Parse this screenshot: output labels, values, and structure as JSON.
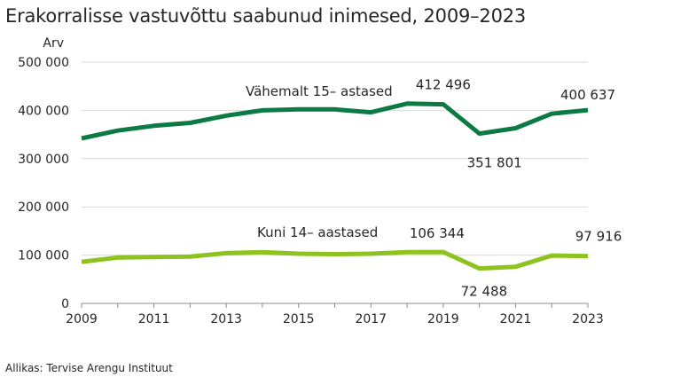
{
  "title": "Erakorralisse vastuvõttu saabunud inimesed, 2009–2023",
  "source": "Allikas: Tervise Arengu Instituut",
  "chart_data": {
    "type": "line",
    "title": "Erakorralisse vastuvõttu saabunud inimesed, 2009–2023",
    "ylabel": "Arv",
    "xlabel": "",
    "ylim": [
      0,
      500000
    ],
    "xlim": [
      2009,
      2023
    ],
    "yticks": [
      0,
      100000,
      200000,
      300000,
      400000,
      500000
    ],
    "ytick_labels": [
      "0",
      "100 000",
      "200 000",
      "300 000",
      "400 000",
      "500 000"
    ],
    "xticks": [
      2009,
      2011,
      2013,
      2015,
      2017,
      2019,
      2021,
      2023
    ],
    "xtick_labels": [
      "2009",
      "2011",
      "2013",
      "2015",
      "2017",
      "2019",
      "2021",
      "2023"
    ],
    "grid": "horizontal",
    "x": [
      2009,
      2010,
      2011,
      2012,
      2013,
      2014,
      2015,
      2016,
      2017,
      2018,
      2019,
      2020,
      2021,
      2022,
      2023
    ],
    "series": [
      {
        "name": "Vähemalt 15– astased",
        "color": "#0b7a43",
        "values": [
          342000,
          358000,
          368000,
          374000,
          389000,
          400000,
          402000,
          402000,
          396000,
          414000,
          412496,
          351801,
          363000,
          393000,
          400637
        ]
      },
      {
        "name": "Kuni 14– aastased",
        "color": "#8dc21f",
        "values": [
          86000,
          95000,
          96000,
          97000,
          104000,
          106000,
          103000,
          102000,
          103000,
          106000,
          106344,
          72488,
          76000,
          99000,
          97916
        ]
      }
    ],
    "annotations": [
      {
        "series": 0,
        "x": 2019,
        "text": "412 496"
      },
      {
        "series": 0,
        "x": 2020,
        "text": "351 801"
      },
      {
        "series": 0,
        "x": 2023,
        "text": "400 637"
      },
      {
        "series": 1,
        "x": 2019,
        "text": "106 344"
      },
      {
        "series": 1,
        "x": 2020,
        "text": "72 488"
      },
      {
        "series": 1,
        "x": 2023,
        "text": "97 916"
      }
    ]
  }
}
